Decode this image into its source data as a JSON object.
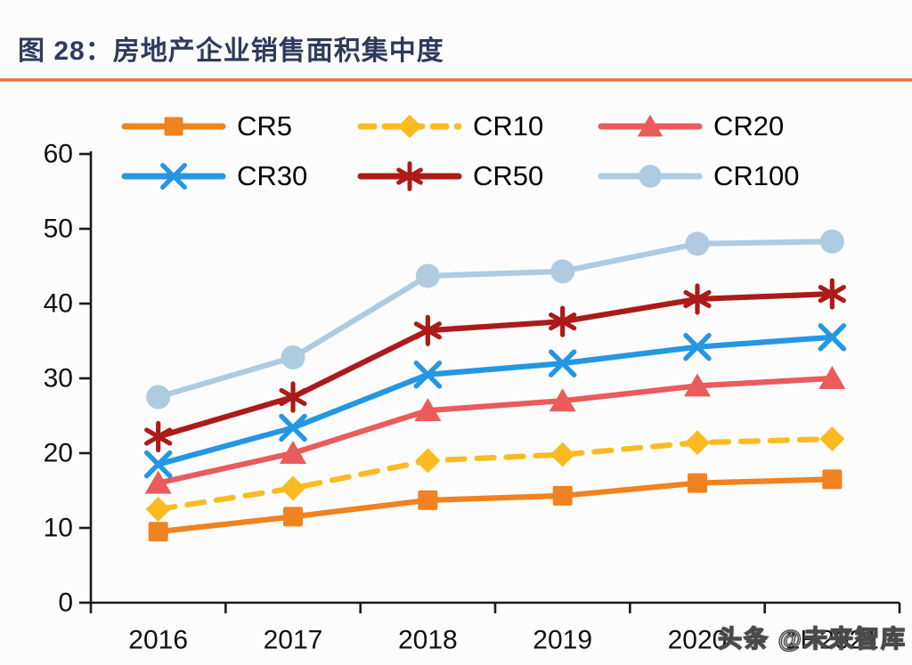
{
  "page": {
    "background_color": "#fcfcfd",
    "watermark_text": "头条 @未来智库"
  },
  "header": {
    "title": "图 28：房地产企业销售面积集中度",
    "title_color": "#2F3A5C",
    "rule_color": "#E8782E"
  },
  "chart_data": {
    "type": "line",
    "title": "房地产企业销售面积集中度",
    "categories": [
      "2016",
      "2017",
      "2018",
      "2019",
      "2020",
      "1H2021"
    ],
    "series": [
      {
        "name": "CR5",
        "color": "#F0821F",
        "marker": "square",
        "line_style": "solid",
        "values": [
          9.5,
          11.5,
          13.7,
          14.3,
          16.0,
          16.5
        ]
      },
      {
        "name": "CR10",
        "color": "#FBBB20",
        "marker": "diamond",
        "line_style": "dashed",
        "values": [
          12.5,
          15.3,
          19.0,
          19.8,
          21.4,
          21.9
        ]
      },
      {
        "name": "CR20",
        "color": "#EA5B5B",
        "marker": "triangle",
        "line_style": "solid",
        "values": [
          16.0,
          20.0,
          25.7,
          27.0,
          29.0,
          30.0
        ]
      },
      {
        "name": "CR30",
        "color": "#2497E3",
        "marker": "x",
        "line_style": "solid",
        "values": [
          18.5,
          23.4,
          30.5,
          32.0,
          34.2,
          35.5
        ]
      },
      {
        "name": "CR50",
        "color": "#AB1B18",
        "marker": "asterisk",
        "line_style": "solid",
        "values": [
          22.2,
          27.5,
          36.4,
          37.6,
          40.6,
          41.3
        ]
      },
      {
        "name": "CR100",
        "color": "#AECBE0",
        "marker": "circle",
        "line_style": "solid",
        "values": [
          27.5,
          32.8,
          43.7,
          44.3,
          48.0,
          48.3
        ]
      }
    ],
    "xlabel": "",
    "ylabel": "",
    "ylim": [
      0,
      60
    ],
    "ytick_step": 10,
    "ytick_labels": [
      "0",
      "10",
      "20",
      "30",
      "40",
      "50",
      "60"
    ],
    "grid": false,
    "legend_position": "top",
    "axis_color": "#1a1a1a"
  }
}
